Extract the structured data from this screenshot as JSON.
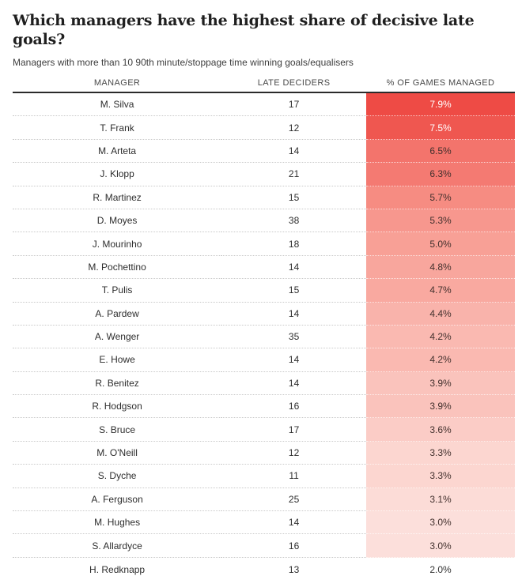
{
  "header": {
    "title": "Which managers have the highest share of decisive late goals?",
    "subtitle": "Managers with more than 10 90th minute/stoppage time winning goals/equalisers"
  },
  "table_header": {
    "manager": "MANAGER",
    "late_deciders": "LATE DECIDERS",
    "pct": "% OF GAMES MANAGED"
  },
  "chart_data": {
    "type": "table",
    "title": "Which managers have the highest share of decisive late goals?",
    "subtitle": "Managers with more than 10 90th minute/stoppage time winning goals/equalisers",
    "columns": [
      "Manager",
      "Late deciders",
      "% of games managed"
    ],
    "rows": [
      {
        "manager": "M. Silva",
        "late_deciders": 17,
        "pct_games_managed": 7.9
      },
      {
        "manager": "T. Frank",
        "late_deciders": 12,
        "pct_games_managed": 7.5
      },
      {
        "manager": "M. Arteta",
        "late_deciders": 14,
        "pct_games_managed": 6.5
      },
      {
        "manager": "J. Klopp",
        "late_deciders": 21,
        "pct_games_managed": 6.3
      },
      {
        "manager": "R. Martinez",
        "late_deciders": 15,
        "pct_games_managed": 5.7
      },
      {
        "manager": "D. Moyes",
        "late_deciders": 38,
        "pct_games_managed": 5.3
      },
      {
        "manager": "J. Mourinho",
        "late_deciders": 18,
        "pct_games_managed": 5.0
      },
      {
        "manager": "M. Pochettino",
        "late_deciders": 14,
        "pct_games_managed": 4.8
      },
      {
        "manager": "T. Pulis",
        "late_deciders": 15,
        "pct_games_managed": 4.7
      },
      {
        "manager": "A. Pardew",
        "late_deciders": 14,
        "pct_games_managed": 4.4
      },
      {
        "manager": "A. Wenger",
        "late_deciders": 35,
        "pct_games_managed": 4.2
      },
      {
        "manager": "E. Howe",
        "late_deciders": 14,
        "pct_games_managed": 4.2
      },
      {
        "manager": "R. Benitez",
        "late_deciders": 14,
        "pct_games_managed": 3.9
      },
      {
        "manager": "R. Hodgson",
        "late_deciders": 16,
        "pct_games_managed": 3.9
      },
      {
        "manager": "S. Bruce",
        "late_deciders": 17,
        "pct_games_managed": 3.6
      },
      {
        "manager": "M. O'Neill",
        "late_deciders": 12,
        "pct_games_managed": 3.3
      },
      {
        "manager": "S. Dyche",
        "late_deciders": 11,
        "pct_games_managed": 3.3
      },
      {
        "manager": "A. Ferguson",
        "late_deciders": 25,
        "pct_games_managed": 3.1
      },
      {
        "manager": "M. Hughes",
        "late_deciders": 14,
        "pct_games_managed": 3.0
      },
      {
        "manager": "S. Allardyce",
        "late_deciders": 16,
        "pct_games_managed": 3.0
      },
      {
        "manager": "H. Redknapp",
        "late_deciders": 13,
        "pct_games_managed": 2.0
      }
    ],
    "heatmap": {
      "column": "% of games managed",
      "min_value": 2.0,
      "max_value": 7.9,
      "low_color": "#ffffff",
      "high_color": "#ee4b45"
    },
    "layout": {
      "grid": "dotted row dividers",
      "legend": "none"
    }
  },
  "style": {
    "accent_red": "#ee4b45",
    "title_color": "#1f1f1f",
    "header_rule_color": "#2b2b2b",
    "bottom_rule_color": "#b9b9b9",
    "row_divider_color": "#c9c9c9",
    "row_fills": [
      "#ee4b45",
      "#ef5750",
      "#f3746c",
      "#f47a72",
      "#f68c82",
      "#f7978e",
      "#f8a096",
      "#f8a69d",
      "#f9a9a0",
      "#f9b3ab",
      "#fab9b1",
      "#fab9b1",
      "#fac3bc",
      "#fac3bc",
      "#fbccc6",
      "#fcd6d0",
      "#fcd6d0",
      "#fcdcd7",
      "#fcdfdb",
      "#fcdfdb",
      "#ffffff"
    ],
    "row_pct_text": [
      "#ffffff",
      "#ffffff",
      "#42302d",
      "#42302d",
      "#42302d",
      "#42302d",
      "#42302d",
      "#42302d",
      "#42302d",
      "#42302d",
      "#42302d",
      "#42302d",
      "#42302d",
      "#42302d",
      "#42302d",
      "#42302d",
      "#42302d",
      "#42302d",
      "#42302d",
      "#42302d",
      "#333333"
    ]
  }
}
